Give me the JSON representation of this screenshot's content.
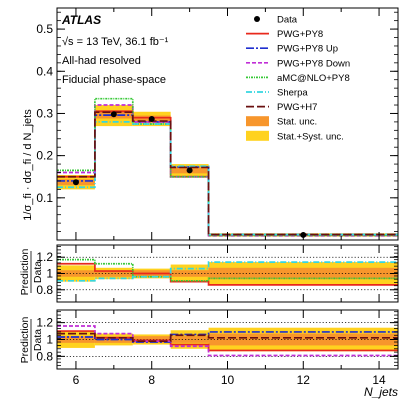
{
  "chart_data": {
    "type": "line",
    "experiment": "ATLAS",
    "annotations": [
      "√s = 13 TeV, 36.1 fb⁻¹",
      "All-had resolved",
      "Fiducial phase-space"
    ],
    "ylabel": "1/σ_fi · dσ_fi / d N_jets",
    "xlabel": "N_jets",
    "x_ticks": [
      6,
      8,
      10,
      12,
      14
    ],
    "xlim": [
      5.5,
      14.5
    ],
    "bin_edges": [
      5.5,
      6.5,
      7.5,
      8.5,
      9.5,
      14.5
    ],
    "legend_position": "top-right",
    "legend": [
      {
        "label": "Data",
        "kind": "marker",
        "color": "#000000"
      },
      {
        "label": "PWG+PY8",
        "kind": "line",
        "color": "#e8291c",
        "dash": ""
      },
      {
        "label": "PWG+PY8 Up",
        "kind": "line",
        "color": "#1f2fcf",
        "dash": "8 2 2 2"
      },
      {
        "label": "PWG+PY8 Down",
        "kind": "line",
        "color": "#c02fd6",
        "dash": "4 2"
      },
      {
        "label": "aMC@NLO+PY8",
        "kind": "line",
        "color": "#37c837",
        "dash": "2 1 1 1"
      },
      {
        "label": "Sherpa",
        "kind": "line",
        "color": "#35d6e0",
        "dash": "6 2 1 2"
      },
      {
        "label": "PWG+H7",
        "kind": "line",
        "color": "#6a1010",
        "dash": "8 3"
      },
      {
        "label": "Stat. unc.",
        "kind": "box",
        "color": "#f7962c"
      },
      {
        "label": "Stat.+Syst. unc.",
        "kind": "box",
        "color": "#ffd21f"
      }
    ],
    "panels": [
      {
        "name": "main",
        "ylim": [
          0,
          0.55
        ],
        "y_ticks": [
          0.1,
          0.2,
          0.3,
          0.4,
          0.5
        ],
        "y_tick_labels": [
          "0.1",
          "0.2",
          "0.3",
          "0.4",
          "0.5"
        ],
        "data": {
          "x": [
            6,
            7,
            8,
            9,
            12
          ],
          "y": [
            0.137,
            0.298,
            0.287,
            0.165,
            0.012
          ]
        },
        "band_stat": [
          [
            0.13,
            0.144
          ],
          [
            0.288,
            0.308
          ],
          [
            0.279,
            0.295
          ],
          [
            0.158,
            0.172
          ],
          [
            0.01,
            0.014
          ]
        ],
        "band_syst": [
          [
            0.12,
            0.154
          ],
          [
            0.27,
            0.32
          ],
          [
            0.27,
            0.304
          ],
          [
            0.15,
            0.18
          ],
          [
            0.008,
            0.016
          ]
        ],
        "series": [
          {
            "name": "PWG+PY8",
            "values": [
              0.15,
              0.305,
              0.29,
              0.15,
              0.012
            ]
          },
          {
            "name": "PWG+PY8 Up",
            "values": [
              0.14,
              0.296,
              0.28,
              0.173,
              0.013
            ]
          },
          {
            "name": "PWG+PY8 Down",
            "values": [
              0.16,
              0.32,
              0.28,
              0.15,
              0.01
            ]
          },
          {
            "name": "aMC@NLO+PY8",
            "values": [
              0.165,
              0.335,
              0.275,
              0.15,
              0.011
            ]
          },
          {
            "name": "Sherpa",
            "values": [
              0.125,
              0.28,
              0.275,
              0.175,
              0.013
            ]
          },
          {
            "name": "PWG+H7",
            "values": [
              0.15,
              0.303,
              0.282,
              0.172,
              0.013
            ]
          }
        ]
      },
      {
        "name": "ratio-1",
        "ylabel": "Prediction / Data",
        "ylim": [
          0.65,
          1.35
        ],
        "y_ticks": [
          0.8,
          1.0,
          1.2
        ],
        "y_tick_labels": [
          "0.8",
          "1",
          "1.2"
        ],
        "ref_lines": [
          0.8,
          1.0,
          1.2
        ],
        "band_stat": [
          [
            0.96,
            1.04
          ],
          [
            0.96,
            1.04
          ],
          [
            0.96,
            1.04
          ],
          [
            0.96,
            1.04
          ],
          [
            0.93,
            1.07
          ]
        ],
        "band_syst": [
          [
            0.9,
            1.1
          ],
          [
            0.93,
            1.07
          ],
          [
            0.94,
            1.06
          ],
          [
            0.89,
            1.11
          ],
          [
            0.86,
            1.14
          ]
        ],
        "series": [
          {
            "name": "PWG+PY8",
            "values": [
              1.12,
              1.03,
              1.0,
              0.9,
              0.86
            ]
          },
          {
            "name": "aMC@NLO+PY8",
            "values": [
              1.17,
              1.12,
              0.96,
              0.91,
              0.94
            ]
          },
          {
            "name": "Sherpa",
            "values": [
              0.91,
              0.94,
              0.96,
              1.06,
              1.14
            ]
          }
        ]
      },
      {
        "name": "ratio-2",
        "ylabel": "Prediction / Data",
        "ylim": [
          0.65,
          1.35
        ],
        "y_ticks": [
          0.8,
          1.0,
          1.2
        ],
        "y_tick_labels": [
          "0.8",
          "1",
          "1.2"
        ],
        "ref_lines": [
          0.8,
          1.0,
          1.2
        ],
        "band_stat": [
          [
            0.96,
            1.04
          ],
          [
            0.96,
            1.04
          ],
          [
            0.96,
            1.04
          ],
          [
            0.96,
            1.04
          ],
          [
            0.93,
            1.07
          ]
        ],
        "band_syst": [
          [
            0.9,
            1.1
          ],
          [
            0.93,
            1.07
          ],
          [
            0.94,
            1.06
          ],
          [
            0.89,
            1.11
          ],
          [
            0.86,
            1.14
          ]
        ],
        "series": [
          {
            "name": "PWG+PY8",
            "values": [
              1.1,
              1.02,
              0.99,
              0.94,
              0.87
            ]
          },
          {
            "name": "PWG+PY8 Up",
            "values": [
              1.03,
              1.0,
              0.97,
              1.06,
              1.09
            ]
          },
          {
            "name": "PWG+PY8 Down",
            "values": [
              1.16,
              1.07,
              0.98,
              0.92,
              0.81
            ]
          },
          {
            "name": "PWG+H7",
            "values": [
              1.07,
              1.02,
              0.98,
              1.05,
              1.02
            ]
          }
        ]
      }
    ]
  }
}
